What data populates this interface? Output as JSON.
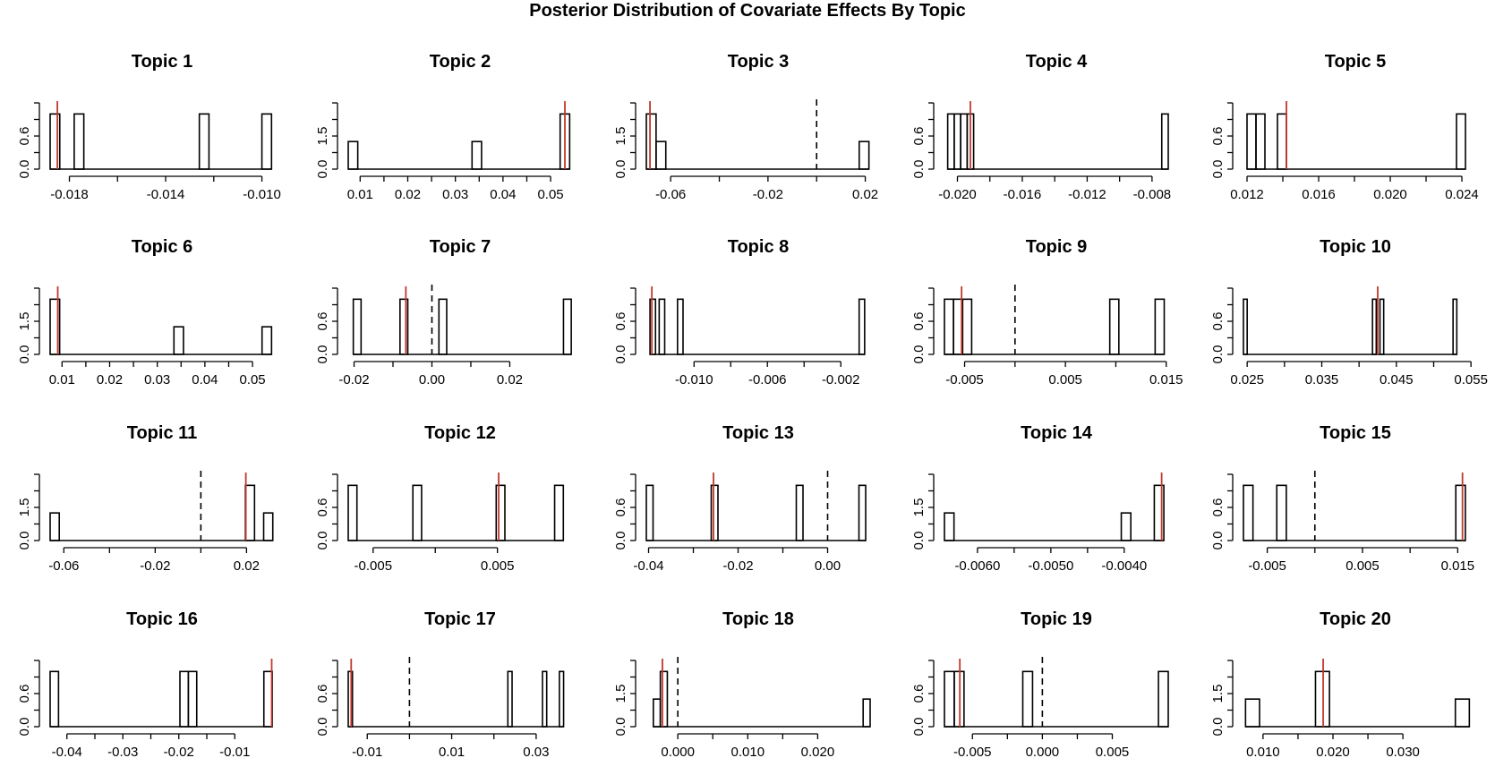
{
  "title": "Posterior Distribution of Covariate Effects By Topic",
  "colors": {
    "bars": "#000000",
    "estimate_line": "#c0392b",
    "zero_line": "#000000"
  },
  "chart_data": [
    {
      "type": "histogram",
      "title": "Topic 1",
      "xlim": [
        -0.0188,
        -0.0095
      ],
      "xticks": [
        "-0.018",
        "-0.014",
        "-0.010"
      ],
      "yticks": [
        "0.0",
        "0.6"
      ],
      "ymax": 1.2,
      "bins": [
        [
          -0.0188,
          -0.0184,
          1
        ],
        [
          -0.0178,
          -0.0174,
          1
        ],
        [
          -0.0126,
          -0.0122,
          1
        ],
        [
          -0.01,
          -0.0096,
          1
        ]
      ],
      "estimate": -0.0185,
      "zero_line": null
    },
    {
      "type": "histogram",
      "title": "Topic 2",
      "xlim": [
        0.0075,
        0.0545
      ],
      "xticks": [
        "0.01",
        "0.02",
        "0.03",
        "0.04",
        "0.05"
      ],
      "yticks": [
        "0.0",
        "1.5"
      ],
      "ymax": 2.4,
      "bins": [
        [
          0.0075,
          0.0095,
          1
        ],
        [
          0.0335,
          0.0355,
          1
        ],
        [
          0.052,
          0.054,
          2
        ]
      ],
      "estimate": 0.053,
      "zero_line": null
    },
    {
      "type": "histogram",
      "title": "Topic 3",
      "xlim": [
        -0.07,
        0.022
      ],
      "xticks": [
        "-0.06",
        "-0.02",
        "0.02"
      ],
      "yticks": [
        "0.0",
        "1.5"
      ],
      "ymax": 2.4,
      "bins": [
        [
          -0.07,
          -0.066,
          2
        ],
        [
          -0.066,
          -0.062,
          1
        ],
        [
          0.0175,
          0.0215,
          1
        ]
      ],
      "estimate": -0.0685,
      "zero_line": 0
    },
    {
      "type": "histogram",
      "title": "Topic 4",
      "xlim": [
        -0.0208,
        -0.007
      ],
      "xticks": [
        "-0.020",
        "-0.016",
        "-0.012",
        "-0.008"
      ],
      "yticks": [
        "0.0",
        "0.6"
      ],
      "ymax": 1.2,
      "bins": [
        [
          -0.0206,
          -0.0202,
          1
        ],
        [
          -0.0202,
          -0.0198,
          1
        ],
        [
          -0.0198,
          -0.0194,
          1
        ],
        [
          -0.0194,
          -0.019,
          1
        ],
        [
          -0.0074,
          -0.007,
          1
        ]
      ],
      "estimate": -0.0192,
      "zero_line": null
    },
    {
      "type": "histogram",
      "title": "Topic 5",
      "xlim": [
        0.0118,
        0.0243
      ],
      "xticks": [
        "0.012",
        "0.016",
        "0.020",
        "0.024"
      ],
      "yticks": [
        "0.0",
        "0.6"
      ],
      "ymax": 1.2,
      "bins": [
        [
          0.012,
          0.0125,
          1
        ],
        [
          0.0125,
          0.013,
          1
        ],
        [
          0.0137,
          0.0142,
          1
        ],
        [
          0.0237,
          0.0242,
          1
        ]
      ],
      "estimate": 0.0142,
      "zero_line": null
    },
    {
      "type": "histogram",
      "title": "Topic 6",
      "xlim": [
        0.0075,
        0.0545
      ],
      "xticks": [
        "0.01",
        "0.02",
        "0.03",
        "0.04",
        "0.05"
      ],
      "yticks": [
        "0.0",
        "1.5"
      ],
      "ymax": 2.4,
      "bins": [
        [
          0.0075,
          0.0095,
          2
        ],
        [
          0.0335,
          0.0355,
          1
        ],
        [
          0.052,
          0.054,
          1
        ]
      ],
      "estimate": 0.0091,
      "zero_line": null
    },
    {
      "type": "histogram",
      "title": "Topic 7",
      "xlim": [
        -0.0215,
        0.036
      ],
      "xticks": [
        "-0.02",
        "0.00",
        "0.02"
      ],
      "yticks": [
        "0.0",
        "0.6"
      ],
      "ymax": 1.2,
      "bins": [
        [
          -0.0202,
          -0.0182,
          1
        ],
        [
          -0.0082,
          -0.0062,
          1
        ],
        [
          0.0018,
          0.0038,
          1
        ],
        [
          0.0338,
          0.0358,
          1
        ]
      ],
      "estimate": -0.0067,
      "zero_line": 0
    },
    {
      "type": "histogram",
      "title": "Topic 8",
      "xlim": [
        -0.0126,
        -0.0004
      ],
      "xticks": [
        "-0.010",
        "-0.006",
        "-0.002"
      ],
      "yticks": [
        "0.0",
        "0.6"
      ],
      "ymax": 1.2,
      "bins": [
        [
          -0.0124,
          -0.0121,
          1
        ],
        [
          -0.0119,
          -0.0116,
          1
        ],
        [
          -0.0109,
          -0.0106,
          1
        ],
        [
          -0.001,
          -0.0007,
          1
        ]
      ],
      "estimate": -0.0123,
      "zero_line": null
    },
    {
      "type": "histogram",
      "title": "Topic 9",
      "xlim": [
        -0.007,
        0.0152
      ],
      "xticks": [
        "-0.005",
        "0.005",
        "0.015"
      ],
      "yticks": [
        "0.0",
        "0.6"
      ],
      "ymax": 1.2,
      "bins": [
        [
          -0.007,
          -0.0061,
          1
        ],
        [
          -0.0061,
          -0.0052,
          1
        ],
        [
          -0.0052,
          -0.0043,
          1
        ],
        [
          0.0094,
          0.0103,
          1
        ],
        [
          0.0139,
          0.0148,
          1
        ]
      ],
      "estimate": -0.0053,
      "zero_line": 0
    },
    {
      "type": "histogram",
      "title": "Topic 10",
      "xlim": [
        0.0245,
        0.0545
      ],
      "xticks": [
        "0.025",
        "0.035",
        "0.045",
        "0.055"
      ],
      "yticks": [
        "0.0",
        "0.6"
      ],
      "ymax": 1.2,
      "bins": [
        [
          0.0245,
          0.025,
          1
        ],
        [
          0.0418,
          0.0423,
          1
        ],
        [
          0.0428,
          0.0433,
          1
        ],
        [
          0.0526,
          0.0531,
          1
        ]
      ],
      "estimate": 0.0425,
      "zero_line": null
    },
    {
      "type": "histogram",
      "title": "Topic 11",
      "xlim": [
        -0.066,
        0.032
      ],
      "xticks": [
        "-0.06",
        "-0.02",
        "0.02"
      ],
      "yticks": [
        "0.0",
        "1.5"
      ],
      "ymax": 2.4,
      "bins": [
        [
          -0.066,
          -0.062,
          1
        ],
        [
          0.0195,
          0.0235,
          2
        ],
        [
          0.0275,
          0.0315,
          1
        ]
      ],
      "estimate": 0.0197,
      "zero_line": 0
    },
    {
      "type": "histogram",
      "title": "Topic 12",
      "xlim": [
        -0.007,
        0.011
      ],
      "xticks": [
        "-0.005",
        "0.005"
      ],
      "yticks": [
        "0.0",
        "0.6"
      ],
      "ymax": 1.2,
      "bins": [
        [
          -0.007,
          -0.0063,
          1
        ],
        [
          -0.0018,
          -0.0011,
          1
        ],
        [
          0.0049,
          0.0056,
          1
        ],
        [
          0.0096,
          0.0103,
          1
        ]
      ],
      "estimate": 0.0051,
      "zero_line": null
    },
    {
      "type": "histogram",
      "title": "Topic 13",
      "xlim": [
        -0.0405,
        0.0095
      ],
      "xticks": [
        "-0.04",
        "-0.02",
        "0.00"
      ],
      "yticks": [
        "0.0",
        "0.6"
      ],
      "ymax": 1.2,
      "bins": [
        [
          -0.0405,
          -0.039,
          1
        ],
        [
          -0.026,
          -0.0245,
          1
        ],
        [
          -0.007,
          -0.0055,
          1
        ],
        [
          0.007,
          0.0085,
          1
        ]
      ],
      "estimate": -0.0255,
      "zero_line": 0
    },
    {
      "type": "histogram",
      "title": "Topic 14",
      "xlim": [
        -0.00645,
        -0.0034
      ],
      "xticks": [
        "-0.0060",
        "-0.0050",
        "-0.0040"
      ],
      "yticks": [
        "0.0",
        "1.5"
      ],
      "ymax": 2.4,
      "bins": [
        [
          -0.00645,
          -0.00632,
          1
        ],
        [
          -0.00404,
          -0.00391,
          1
        ],
        [
          -0.00359,
          -0.00346,
          2
        ]
      ],
      "estimate": -0.00349,
      "zero_line": null
    },
    {
      "type": "histogram",
      "title": "Topic 15",
      "xlim": [
        -0.0075,
        0.016
      ],
      "xticks": [
        "-0.005",
        "0.005",
        "0.015"
      ],
      "yticks": [
        "0.0",
        "0.6"
      ],
      "ymax": 1.2,
      "bins": [
        [
          -0.0075,
          -0.0065,
          1
        ],
        [
          -0.004,
          -0.003,
          1
        ],
        [
          0.0148,
          0.0158,
          1
        ]
      ],
      "estimate": 0.0155,
      "zero_line": 0
    },
    {
      "type": "histogram",
      "title": "Topic 16",
      "xlim": [
        -0.043,
        -0.003
      ],
      "xticks": [
        "-0.04",
        "-0.03",
        "-0.02",
        "-0.01"
      ],
      "yticks": [
        "0.0",
        "0.6"
      ],
      "ymax": 1.2,
      "bins": [
        [
          -0.043,
          -0.0415,
          1
        ],
        [
          -0.0198,
          -0.0183,
          1
        ],
        [
          -0.0183,
          -0.0168,
          1
        ],
        [
          -0.0048,
          -0.0033,
          1
        ]
      ],
      "estimate": -0.0034,
      "zero_line": null
    },
    {
      "type": "histogram",
      "title": "Topic 17",
      "xlim": [
        -0.0145,
        0.0385
      ],
      "xticks": [
        "-0.01",
        "0.01",
        "0.03"
      ],
      "yticks": [
        "0.0",
        "0.6"
      ],
      "ymax": 1.2,
      "bins": [
        [
          -0.0145,
          -0.0135,
          1
        ],
        [
          0.0233,
          0.0243,
          1
        ],
        [
          0.0315,
          0.0325,
          1
        ],
        [
          0.0355,
          0.0365,
          1
        ]
      ],
      "estimate": -0.0138,
      "zero_line": 0
    },
    {
      "type": "histogram",
      "title": "Topic 18",
      "xlim": [
        -0.0045,
        0.0275
      ],
      "xticks": [
        "0.000",
        "0.010",
        "0.020"
      ],
      "yticks": [
        "0.0",
        "1.5"
      ],
      "ymax": 2.4,
      "bins": [
        [
          -0.0035,
          -0.0025,
          1
        ],
        [
          -0.0025,
          -0.0015,
          2
        ],
        [
          0.0265,
          0.0275,
          1
        ]
      ],
      "estimate": -0.0022,
      "zero_line": 0
    },
    {
      "type": "histogram",
      "title": "Topic 19",
      "xlim": [
        -0.007,
        0.009
      ],
      "xticks": [
        "-0.005",
        "0.000",
        "0.005"
      ],
      "yticks": [
        "0.0",
        "0.6"
      ],
      "ymax": 1.2,
      "bins": [
        [
          -0.007,
          -0.0063,
          1
        ],
        [
          -0.0063,
          -0.0056,
          1
        ],
        [
          -0.0014,
          -0.0007,
          1
        ],
        [
          0.0083,
          0.009,
          1
        ]
      ],
      "estimate": -0.0059,
      "zero_line": 0
    },
    {
      "type": "histogram",
      "title": "Topic 20",
      "xlim": [
        0.0072,
        0.0392
      ],
      "xticks": [
        "0.010",
        "0.020",
        "0.030"
      ],
      "yticks": [
        "0.0",
        "1.5"
      ],
      "ymax": 2.4,
      "bins": [
        [
          0.0075,
          0.0095,
          1
        ],
        [
          0.0175,
          0.0195,
          2
        ],
        [
          0.0375,
          0.0395,
          1
        ]
      ],
      "estimate": 0.0186,
      "zero_line": null
    }
  ]
}
